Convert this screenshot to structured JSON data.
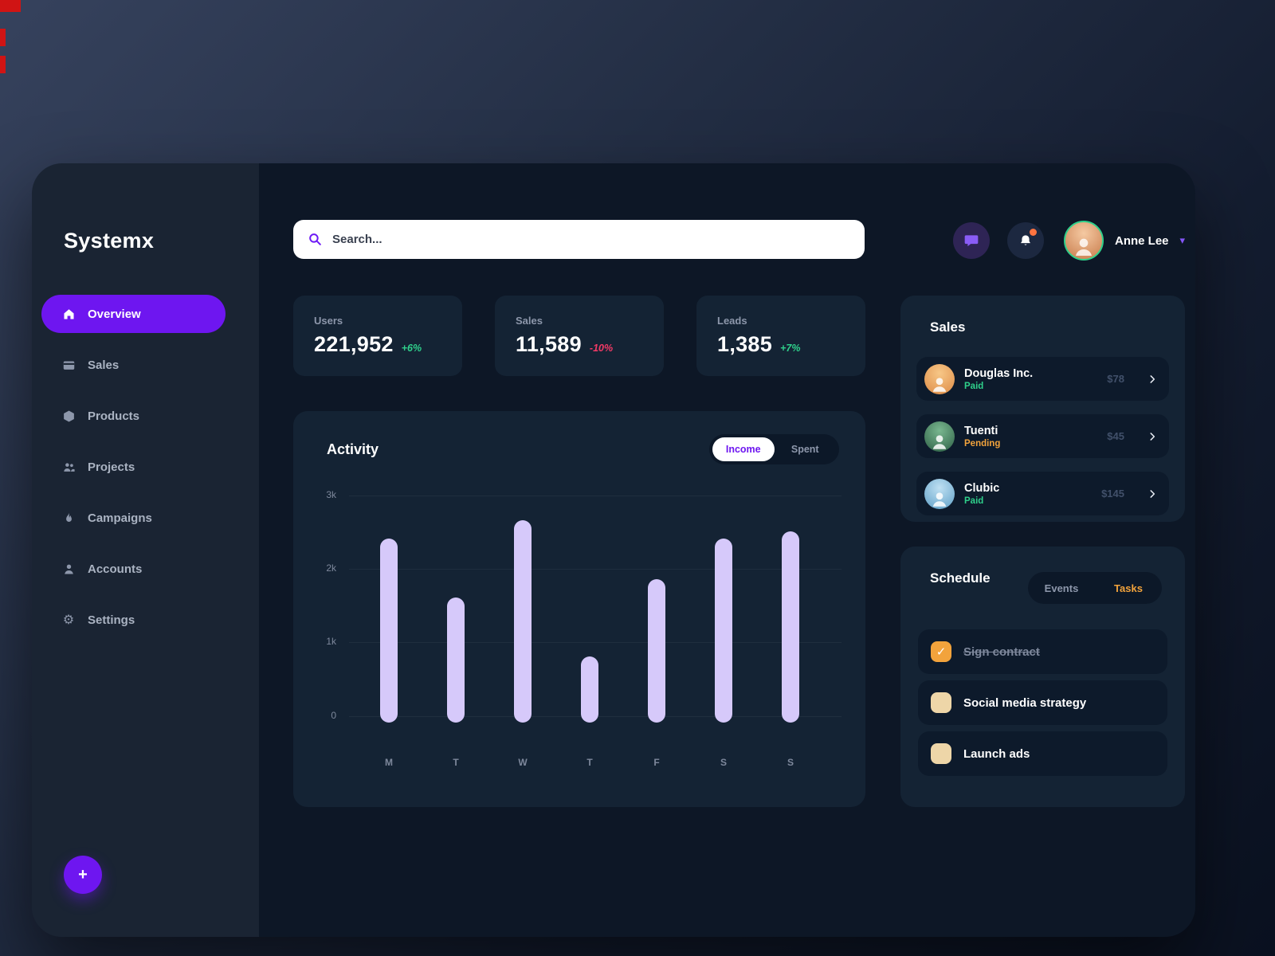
{
  "app": {
    "name": "Systemx"
  },
  "glyphs": {
    "plus": "+",
    "check": "✓",
    "caret_down": "▾",
    "gear": "⚙"
  },
  "sidebar": {
    "items": [
      {
        "label": "Overview",
        "icon": "home-icon",
        "active": true
      },
      {
        "label": "Sales",
        "icon": "card-icon",
        "active": false
      },
      {
        "label": "Products",
        "icon": "box-icon",
        "active": false
      },
      {
        "label": "Projects",
        "icon": "people-icon",
        "active": false
      },
      {
        "label": "Campaigns",
        "icon": "flame-icon",
        "active": false
      },
      {
        "label": "Accounts",
        "icon": "user-icon",
        "active": false
      },
      {
        "label": "Settings",
        "icon": "gear-icon",
        "active": false
      }
    ]
  },
  "header": {
    "search_placeholder": "Search...",
    "user": {
      "name": "Anne Lee"
    }
  },
  "stats": [
    {
      "label": "Users",
      "value": "221,952",
      "delta": "+6%",
      "trend": "up"
    },
    {
      "label": "Sales",
      "value": "11,589",
      "delta": "-10%",
      "trend": "down"
    },
    {
      "label": "Leads",
      "value": "1,385",
      "delta": "+7%",
      "trend": "up"
    }
  ],
  "activity": {
    "title": "Activity",
    "toggle": {
      "options": [
        "Income",
        "Spent"
      ],
      "active": "Income"
    }
  },
  "chart_data": {
    "type": "bar",
    "title": "Activity",
    "series_name": "Income",
    "categories": [
      "M",
      "T",
      "W",
      "T",
      "F",
      "S",
      "S"
    ],
    "values": [
      2500,
      1700,
      2750,
      900,
      1950,
      2500,
      2600
    ],
    "yticks": [
      "3k",
      "2k",
      "1k",
      "0"
    ],
    "ylim": [
      0,
      3000
    ],
    "bar_color": "#d6c9fa",
    "legend": "none",
    "grid": "faint-horizontal"
  },
  "sales_panel": {
    "title": "Sales",
    "items": [
      {
        "name": "Douglas Inc.",
        "status": "Paid",
        "amount": "$78"
      },
      {
        "name": "Tuenti",
        "status": "Pending",
        "amount": "$45"
      },
      {
        "name": "Clubic",
        "status": "Paid",
        "amount": "$145"
      }
    ]
  },
  "schedule": {
    "title": "Schedule",
    "tabs": [
      "Events",
      "Tasks"
    ],
    "active_tab": "Tasks",
    "tasks": [
      {
        "label": "Sign contract",
        "done": true
      },
      {
        "label": "Social media strategy",
        "done": false
      },
      {
        "label": "Launch ads",
        "done": false
      }
    ]
  },
  "colors": {
    "accent_purple": "#6e16f0",
    "positive_green": "#2fd08b",
    "negative_red": "#f23a66",
    "warning_orange": "#f2a33c",
    "bar_lavender": "#d6c9fa"
  }
}
